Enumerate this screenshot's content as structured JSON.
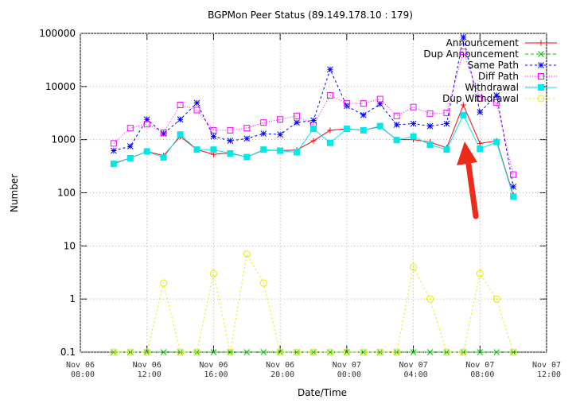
{
  "chart_data": {
    "type": "line",
    "title": "BGPMon Peer Status (89.149.178.10 : 179)",
    "x_label": "Date/Time",
    "y_label": "Number",
    "log_y": true,
    "grid": true,
    "legend": "upper right",
    "x": [
      "Nov 06 10:00",
      "Nov 06 11:00",
      "Nov 06 12:00",
      "Nov 06 13:00",
      "Nov 06 14:00",
      "Nov 06 15:00",
      "Nov 06 16:00",
      "Nov 06 17:00",
      "Nov 06 18:00",
      "Nov 06 19:00",
      "Nov 06 20:00",
      "Nov 06 21:00",
      "Nov 06 22:00",
      "Nov 06 23:00",
      "Nov 07 00:00",
      "Nov 07 01:00",
      "Nov 07 02:00",
      "Nov 07 03:00",
      "Nov 07 04:00",
      "Nov 07 05:00",
      "Nov 07 06:00",
      "Nov 07 07:00",
      "Nov 07 08:00",
      "Nov 07 09:00",
      "Nov 07 10:00"
    ],
    "xlim": [
      "Nov 06 08:00",
      "Nov 07 12:00"
    ],
    "xticks": [
      "Nov 06 08:00",
      "Nov 06 12:00",
      "Nov 06 16:00",
      "Nov 06 20:00",
      "Nov 07 00:00",
      "Nov 07 04:00",
      "Nov 07 08:00",
      "Nov 07 12:00"
    ],
    "ylim": [
      0.1,
      100000
    ],
    "yticks": [
      0.1,
      1,
      10,
      100,
      1000,
      10000,
      100000
    ],
    "series": [
      {
        "name": "Announcement",
        "color": "#ff0000",
        "marker": "plus",
        "dash": "none",
        "values": [
          360,
          450,
          600,
          500,
          1150,
          650,
          530,
          560,
          470,
          640,
          620,
          640,
          950,
          1500,
          1600,
          1500,
          1750,
          1000,
          1000,
          900,
          700,
          4500,
          850,
          950,
          90
        ]
      },
      {
        "name": "Dup Announcement",
        "color": "#00c000",
        "marker": "cross",
        "dash": "4,3",
        "values": [
          0.1,
          0.1,
          0.1,
          0.1,
          0.1,
          0.1,
          0.1,
          0.1,
          0.1,
          0.1,
          0.1,
          0.1,
          0.1,
          0.1,
          0.1,
          0.1,
          0.1,
          0.1,
          0.1,
          0.1,
          0.1,
          0.1,
          0.1,
          0.1,
          0.1
        ]
      },
      {
        "name": "Same Path",
        "color": "#0000ff",
        "marker": "star",
        "dash": "3,3",
        "values": [
          620,
          750,
          2400,
          1300,
          2400,
          4900,
          1150,
          950,
          1050,
          1300,
          1250,
          2100,
          2300,
          21000,
          4300,
          2900,
          4700,
          1900,
          2000,
          1800,
          2000,
          85000,
          3300,
          6800,
          130
        ]
      },
      {
        "name": "Diff Path",
        "color": "#ff00ff",
        "marker": "square",
        "dash": "1,2",
        "values": [
          850,
          1650,
          1950,
          1350,
          4500,
          3600,
          1500,
          1500,
          1650,
          2100,
          2400,
          2800,
          1900,
          6800,
          4800,
          4800,
          5800,
          2800,
          4100,
          3100,
          3200,
          45000,
          6000,
          5000,
          220
        ]
      },
      {
        "name": "Withdrawal",
        "color": "#00e8e8",
        "marker": "fsquare",
        "dash": "none",
        "values": [
          350,
          450,
          600,
          460,
          1250,
          650,
          650,
          550,
          470,
          650,
          620,
          580,
          1600,
          870,
          1600,
          1500,
          1800,
          980,
          1150,
          800,
          650,
          2900,
          670,
          900,
          85
        ]
      },
      {
        "name": "Dup Withdrawal",
        "color": "#e8e800",
        "marker": "circle",
        "dash": "2,3",
        "values": [
          0.1,
          0.1,
          0.1,
          2,
          0.1,
          0.1,
          3,
          0.1,
          7,
          2,
          0.1,
          0.1,
          0.1,
          0.1,
          0.1,
          0.1,
          0.1,
          0.1,
          4,
          1,
          0.1,
          0.1,
          3,
          1,
          0.1
        ]
      }
    ]
  }
}
